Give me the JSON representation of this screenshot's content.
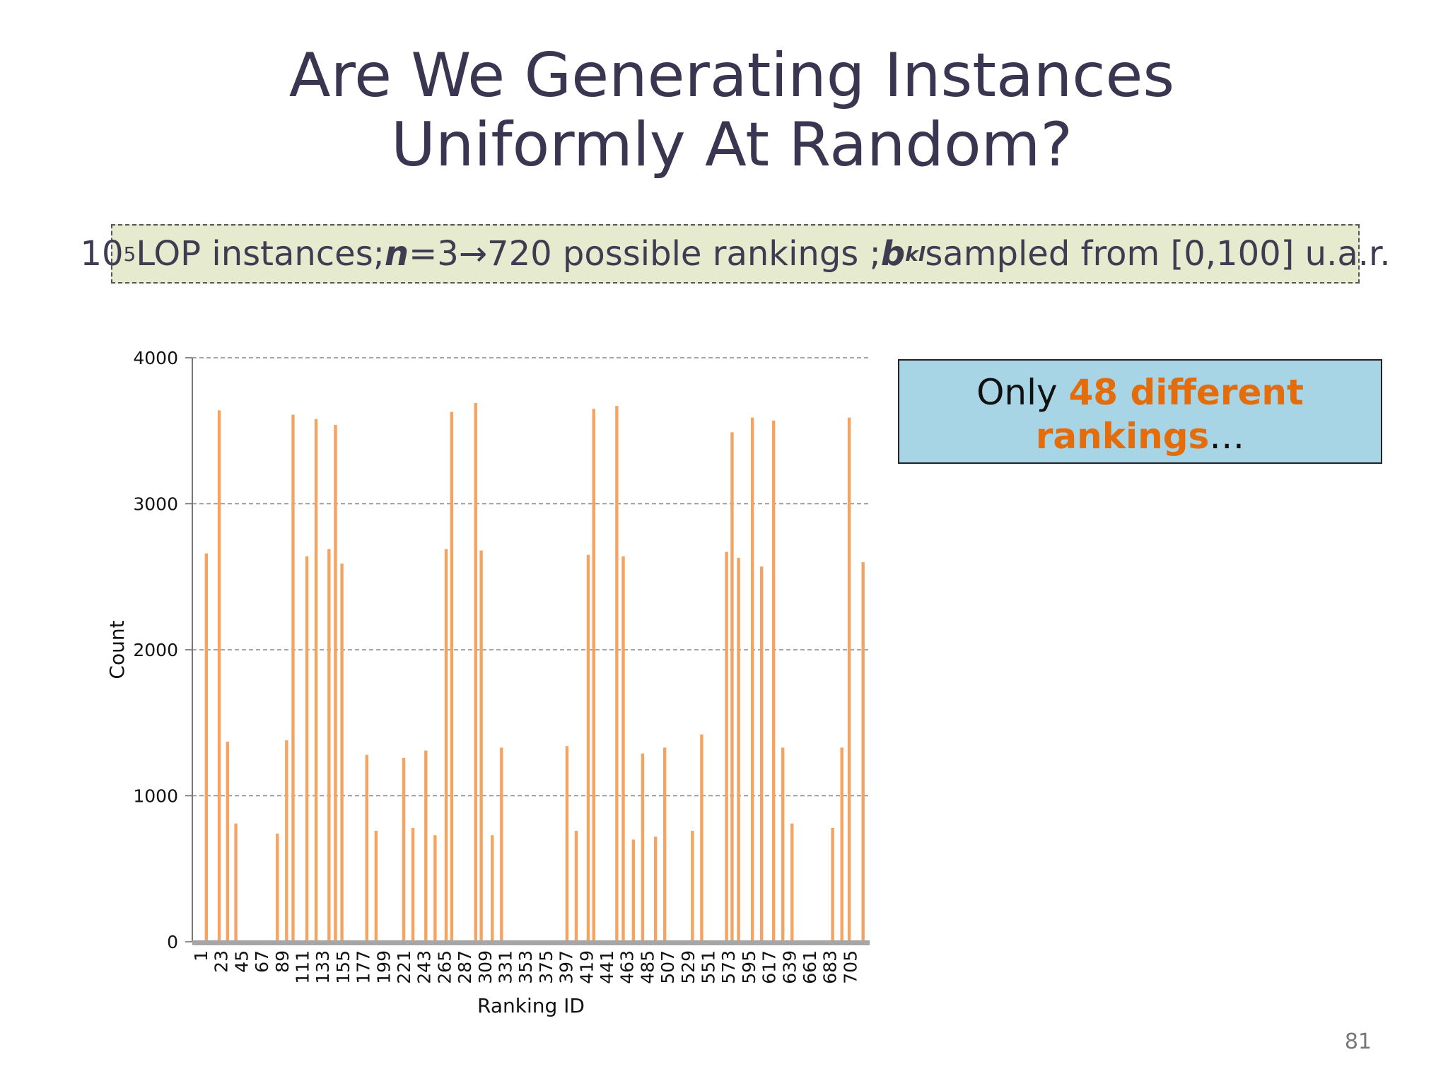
{
  "slide": {
    "title_line1": "Are We Generating Instances",
    "title_line2": "Uniformly At Random?",
    "info": {
      "base": "10",
      "exp": "5",
      "lop": "LOP instances;",
      "n_var": "n",
      "n_eq": "=3",
      "arrow": "→",
      "rankings": "720 possible rankings ;",
      "b_var": "b",
      "b_sub": "kl",
      "tail": "sampled from [0,100] u.a.r."
    },
    "callout": {
      "prefix": "Only ",
      "highlight1": "48 different",
      "highlight2": "rankings",
      "suffix": "…"
    },
    "page_number": "81",
    "colors": {
      "bar": "#f4a460",
      "title": "#3a3550",
      "accent": "#e46c0a",
      "callout_bg": "#a8d5e5",
      "info_bg": "#e6ebcf"
    }
  },
  "chart_data": {
    "type": "bar",
    "title": "",
    "xlabel": "Ranking ID",
    "ylabel": "Count",
    "ylim": [
      0,
      4000
    ],
    "yticks": [
      0,
      1000,
      2000,
      3000,
      4000
    ],
    "grid": true,
    "xlim": [
      1,
      720
    ],
    "xticks": [
      "1",
      "23",
      "45",
      "67",
      "89",
      "111",
      "133",
      "155",
      "177",
      "199",
      "221",
      "243",
      "265",
      "287",
      "309",
      "331",
      "353",
      "375",
      "397",
      "419",
      "441",
      "463",
      "485",
      "507",
      "529",
      "551",
      "573",
      "595",
      "617",
      "639",
      "661",
      "683",
      "705"
    ],
    "bars": [
      {
        "x": 7,
        "y": 2660
      },
      {
        "x": 21,
        "y": 3640
      },
      {
        "x": 30,
        "y": 1370
      },
      {
        "x": 39,
        "y": 810
      },
      {
        "x": 84,
        "y": 740
      },
      {
        "x": 94,
        "y": 1380
      },
      {
        "x": 101,
        "y": 3610
      },
      {
        "x": 116,
        "y": 2640
      },
      {
        "x": 126,
        "y": 3580
      },
      {
        "x": 140,
        "y": 2690
      },
      {
        "x": 147,
        "y": 3540
      },
      {
        "x": 154,
        "y": 2590
      },
      {
        "x": 181,
        "y": 1280
      },
      {
        "x": 191,
        "y": 760
      },
      {
        "x": 221,
        "y": 1260
      },
      {
        "x": 231,
        "y": 780
      },
      {
        "x": 245,
        "y": 1310
      },
      {
        "x": 255,
        "y": 730
      },
      {
        "x": 267,
        "y": 2690
      },
      {
        "x": 273,
        "y": 3630
      },
      {
        "x": 299,
        "y": 3690
      },
      {
        "x": 305,
        "y": 2680
      },
      {
        "x": 317,
        "y": 730
      },
      {
        "x": 327,
        "y": 1330
      },
      {
        "x": 398,
        "y": 1340
      },
      {
        "x": 408,
        "y": 760
      },
      {
        "x": 421,
        "y": 2650
      },
      {
        "x": 427,
        "y": 3650
      },
      {
        "x": 452,
        "y": 3670
      },
      {
        "x": 459,
        "y": 2640
      },
      {
        "x": 470,
        "y": 700
      },
      {
        "x": 480,
        "y": 1290
      },
      {
        "x": 494,
        "y": 720
      },
      {
        "x": 504,
        "y": 1330
      },
      {
        "x": 534,
        "y": 760
      },
      {
        "x": 544,
        "y": 1420
      },
      {
        "x": 571,
        "y": 2670
      },
      {
        "x": 577,
        "y": 3490
      },
      {
        "x": 584,
        "y": 2630
      },
      {
        "x": 599,
        "y": 3590
      },
      {
        "x": 609,
        "y": 2570
      },
      {
        "x": 622,
        "y": 3570
      },
      {
        "x": 632,
        "y": 1330
      },
      {
        "x": 642,
        "y": 810
      },
      {
        "x": 686,
        "y": 780
      },
      {
        "x": 696,
        "y": 1330
      },
      {
        "x": 704,
        "y": 3590
      },
      {
        "x": 719,
        "y": 2600
      }
    ]
  }
}
